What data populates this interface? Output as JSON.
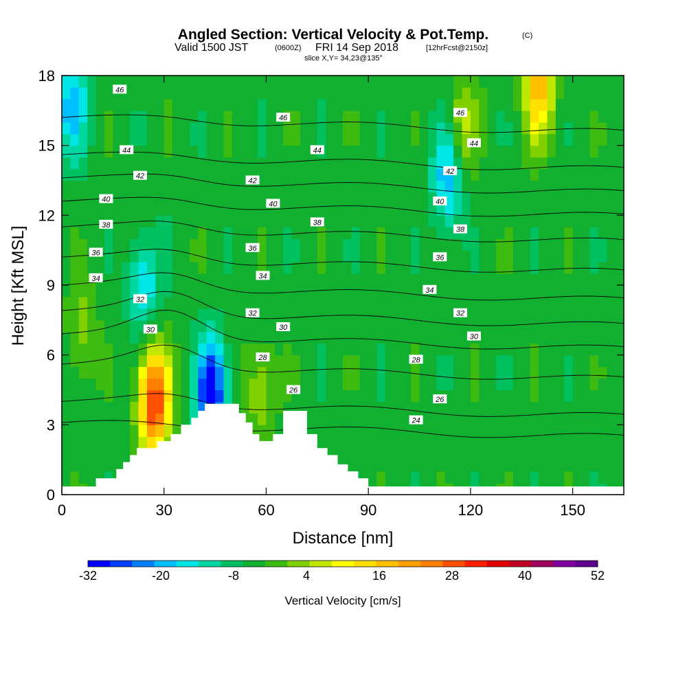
{
  "header": {
    "title": "Angled Section: Vertical Velocity & Pot.Temp.",
    "title_unit": "(C)",
    "valid_prefix": "Valid 1500 JST",
    "valid_utc": "(0600Z)",
    "valid_date": "FRI 14 Sep 2018",
    "forecast": "[12hrFcst@2150z]",
    "slice": "slice X,Y= 34,23@135°"
  },
  "chart_data": {
    "type": "heatmap",
    "xlabel": "Distance [nm]",
    "ylabel": "Height [Kft MSL]",
    "xlim": [
      0,
      165
    ],
    "ylim": [
      0,
      18
    ],
    "x_ticks": [
      "0",
      "30",
      "60",
      "90",
      "120",
      "150"
    ],
    "y_ticks": [
      "0",
      "3",
      "6",
      "9",
      "12",
      "15",
      "18"
    ],
    "colorbar": {
      "label": "Vertical Velocity [cm/s]",
      "tick_labels": [
        "-32",
        "-20",
        "-8",
        "4",
        "16",
        "28",
        "40",
        "52"
      ],
      "min": -32,
      "max": 52,
      "step": 4,
      "colors": [
        "#0000ff",
        "#0040ff",
        "#0080ff",
        "#00bfff",
        "#00e6e6",
        "#00d7a0",
        "#00c060",
        "#12b030",
        "#3dbb10",
        "#80d000",
        "#c0e800",
        "#ffff00",
        "#ffe000",
        "#ffc000",
        "#ffa000",
        "#ff8000",
        "#ff5000",
        "#ff2000",
        "#e00000",
        "#c00020",
        "#a00060",
        "#8000a0",
        "#600090"
      ]
    },
    "background_value": -2,
    "updraft_cores": [
      {
        "x": 27,
        "z": 4.0,
        "peak": 40
      },
      {
        "x": 58,
        "z": 4.5,
        "peak": 10
      },
      {
        "x": 140,
        "z": 17.5,
        "peak": 24
      },
      {
        "x": 118,
        "z": 16.0,
        "peak": 10
      },
      {
        "x": 6,
        "z": 7.0,
        "peak": 8
      }
    ],
    "downdraft_cores": [
      {
        "x": 44,
        "z": 4.5,
        "peak": -30
      },
      {
        "x": 3,
        "z": 16.7,
        "peak": -16
      },
      {
        "x": 113,
        "z": 13.5,
        "peak": -16
      },
      {
        "x": 24,
        "z": 9.0,
        "peak": -14
      }
    ],
    "terrain": [
      [
        0,
        0.35
      ],
      [
        10,
        0.35
      ],
      [
        10,
        0.7
      ],
      [
        16,
        0.7
      ],
      [
        16,
        1.1
      ],
      [
        18,
        1.1
      ],
      [
        18,
        1.4
      ],
      [
        20,
        1.4
      ],
      [
        20,
        1.7
      ],
      [
        22,
        1.7
      ],
      [
        22,
        2.0
      ],
      [
        28,
        2.0
      ],
      [
        28,
        2.3
      ],
      [
        32,
        2.3
      ],
      [
        32,
        2.6
      ],
      [
        35,
        2.6
      ],
      [
        35,
        3.0
      ],
      [
        38,
        3.0
      ],
      [
        38,
        3.3
      ],
      [
        40,
        3.3
      ],
      [
        40,
        3.6
      ],
      [
        42,
        3.6
      ],
      [
        42,
        3.9
      ],
      [
        52,
        3.9
      ],
      [
        52,
        3.5
      ],
      [
        54,
        3.5
      ],
      [
        54,
        3.1
      ],
      [
        56,
        3.1
      ],
      [
        56,
        2.6
      ],
      [
        58,
        2.6
      ],
      [
        58,
        2.3
      ],
      [
        62,
        2.3
      ],
      [
        62,
        2.6
      ],
      [
        65,
        2.6
      ],
      [
        65,
        3.6
      ],
      [
        72,
        3.6
      ],
      [
        72,
        2.6
      ],
      [
        75,
        2.6
      ],
      [
        75,
        2.0
      ],
      [
        78,
        2.0
      ],
      [
        78,
        1.7
      ],
      [
        81,
        1.7
      ],
      [
        81,
        1.3
      ],
      [
        84,
        1.3
      ],
      [
        84,
        1.0
      ],
      [
        87,
        1.0
      ],
      [
        87,
        0.7
      ],
      [
        90,
        0.7
      ],
      [
        90,
        0.35
      ],
      [
        165,
        0.35
      ]
    ],
    "isentropes": [
      {
        "label": "24",
        "y0": 3.1,
        "bump": 0.0
      },
      {
        "label": "26",
        "y0": 4.0,
        "bump": 0.4
      },
      {
        "label": "28",
        "y0": 5.6,
        "bump": 0.9
      },
      {
        "label": "30",
        "y0": 6.9,
        "bump": 1.1
      },
      {
        "label": "32",
        "y0": 7.9,
        "bump": 0.9
      },
      {
        "label": "34",
        "y0": 9.0,
        "bump": 0.6
      },
      {
        "label": "36",
        "y0": 10.2,
        "bump": 0.4
      },
      {
        "label": "38",
        "y0": 11.5,
        "bump": 0.3
      },
      {
        "label": "40",
        "y0": 12.6,
        "bump": 0.2
      },
      {
        "label": "42",
        "y0": 13.6,
        "bump": 0.2
      },
      {
        "label": "44",
        "y0": 14.6,
        "bump": 0.1
      },
      {
        "label": "46",
        "y0": 16.2,
        "bump": 0.1
      }
    ],
    "contour_labels": [
      {
        "text": "46",
        "x": 17,
        "z": 17.4
      },
      {
        "text": "46",
        "x": 65,
        "z": 16.2
      },
      {
        "text": "46",
        "x": 117,
        "z": 16.4
      },
      {
        "text": "44",
        "x": 19,
        "z": 14.8
      },
      {
        "text": "44",
        "x": 75,
        "z": 14.8
      },
      {
        "text": "44",
        "x": 121,
        "z": 15.1
      },
      {
        "text": "42",
        "x": 23,
        "z": 13.7
      },
      {
        "text": "42",
        "x": 56,
        "z": 13.5
      },
      {
        "text": "42",
        "x": 114,
        "z": 13.9
      },
      {
        "text": "40",
        "x": 13,
        "z": 12.7
      },
      {
        "text": "40",
        "x": 62,
        "z": 12.5
      },
      {
        "text": "40",
        "x": 111,
        "z": 12.6
      },
      {
        "text": "38",
        "x": 13,
        "z": 11.6
      },
      {
        "text": "38",
        "x": 75,
        "z": 11.7
      },
      {
        "text": "38",
        "x": 117,
        "z": 11.4
      },
      {
        "text": "36",
        "x": 10,
        "z": 10.4
      },
      {
        "text": "36",
        "x": 56,
        "z": 10.6
      },
      {
        "text": "36",
        "x": 111,
        "z": 10.2
      },
      {
        "text": "34",
        "x": 10,
        "z": 9.3
      },
      {
        "text": "34",
        "x": 59,
        "z": 9.4
      },
      {
        "text": "34",
        "x": 108,
        "z": 8.8
      },
      {
        "text": "32",
        "x": 23,
        "z": 8.4
      },
      {
        "text": "32",
        "x": 56,
        "z": 7.8
      },
      {
        "text": "32",
        "x": 117,
        "z": 7.8
      },
      {
        "text": "30",
        "x": 26,
        "z": 7.1
      },
      {
        "text": "30",
        "x": 65,
        "z": 7.2
      },
      {
        "text": "30",
        "x": 121,
        "z": 6.8
      },
      {
        "text": "28",
        "x": 59,
        "z": 5.9
      },
      {
        "text": "28",
        "x": 104,
        "z": 5.8
      },
      {
        "text": "26",
        "x": 68,
        "z": 4.5
      },
      {
        "text": "26",
        "x": 111,
        "z": 4.1
      },
      {
        "text": "24",
        "x": 104,
        "z": 3.2
      }
    ]
  }
}
